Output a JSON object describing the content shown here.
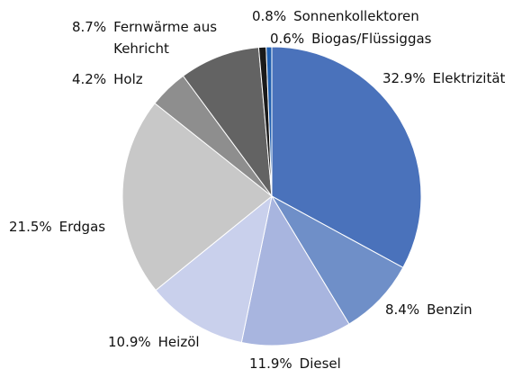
{
  "chart_data": {
    "type": "pie",
    "categories": [
      "Elektrizität",
      "Benzin",
      "Diesel",
      "Heizöl",
      "Erdgas",
      "Holz",
      "Fernwärme aus Kehricht",
      "Sonnenkollektoren",
      "Biogas/Flüssiggas"
    ],
    "values": [
      32.9,
      8.4,
      11.9,
      10.9,
      21.5,
      4.2,
      8.7,
      0.8,
      0.6
    ],
    "value_labels": [
      "32.9%",
      "8.4%",
      "11.9%",
      "10.9%",
      "21.5%",
      "4.2%",
      "8.7%",
      "0.8%",
      "0.6%"
    ],
    "colors": [
      "#4a72bb",
      "#6f8fc8",
      "#a8b5df",
      "#c9d0ec",
      "#c8c8c8",
      "#8e8e8e",
      "#636363",
      "#1a1a1a",
      "#1f5fb0"
    ]
  }
}
